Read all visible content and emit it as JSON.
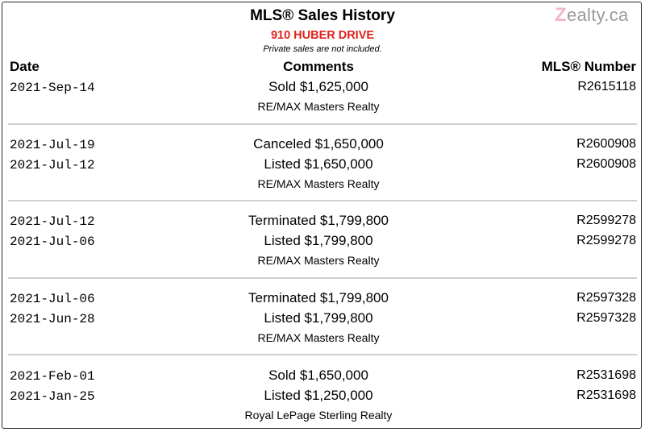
{
  "header": {
    "title": "MLS® Sales History",
    "address": "910 HUBER DRIVE",
    "note": "Private sales are not included.",
    "logo_mark": "Z",
    "logo_text": "ealty.ca"
  },
  "columns": {
    "date": "Date",
    "comments": "Comments",
    "mls": "MLS® Number"
  },
  "groups": [
    {
      "entries": [
        {
          "date": "2021-Sep-14",
          "comment": "Sold $1,625,000",
          "mls": "R2615118"
        }
      ],
      "broker": "RE/MAX Masters Realty"
    },
    {
      "entries": [
        {
          "date": "2021-Jul-19",
          "comment": "Canceled $1,650,000",
          "mls": "R2600908"
        },
        {
          "date": "2021-Jul-12",
          "comment": "Listed $1,650,000",
          "mls": "R2600908"
        }
      ],
      "broker": "RE/MAX Masters Realty"
    },
    {
      "entries": [
        {
          "date": "2021-Jul-12",
          "comment": "Terminated $1,799,800",
          "mls": "R2599278"
        },
        {
          "date": "2021-Jul-06",
          "comment": "Listed $1,799,800",
          "mls": "R2599278"
        }
      ],
      "broker": "RE/MAX Masters Realty"
    },
    {
      "entries": [
        {
          "date": "2021-Jul-06",
          "comment": "Terminated $1,799,800",
          "mls": "R2597328"
        },
        {
          "date": "2021-Jun-28",
          "comment": "Listed $1,799,800",
          "mls": "R2597328"
        }
      ],
      "broker": "RE/MAX Masters Realty"
    },
    {
      "entries": [
        {
          "date": "2021-Feb-01",
          "comment": "Sold $1,650,000",
          "mls": "R2531698"
        },
        {
          "date": "2021-Jan-25",
          "comment": "Listed $1,250,000",
          "mls": "R2531698"
        }
      ],
      "broker": "Royal LePage Sterling Realty"
    }
  ]
}
